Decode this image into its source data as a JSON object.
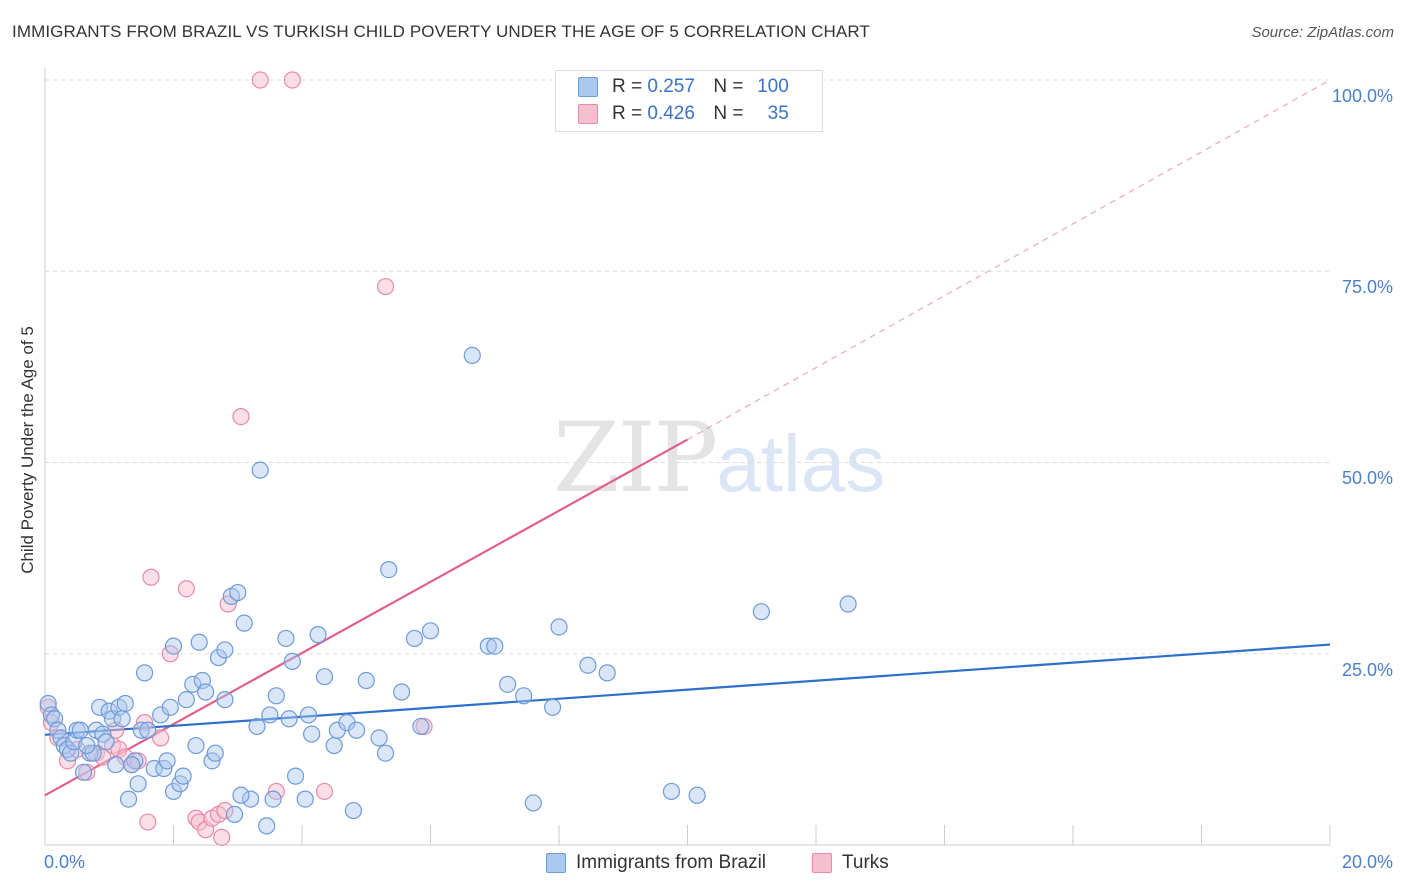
{
  "title": "IMMIGRANTS FROM BRAZIL VS TURKISH CHILD POVERTY UNDER THE AGE OF 5 CORRELATION CHART",
  "source": "Source: ZipAtlas.com",
  "watermark": {
    "zip": "ZIP",
    "atlas": "atlas"
  },
  "legend_top": {
    "rows": [
      {
        "r_label": "R =",
        "r_value": "0.257",
        "n_label": "N =",
        "n_value": "100"
      },
      {
        "r_label": "R =",
        "r_value": "0.426",
        "n_label": "N =",
        "n_value": "35"
      }
    ]
  },
  "legend_bottom": [
    {
      "label": "Immigrants from Brazil"
    },
    {
      "label": "Turks"
    }
  ],
  "colors": {
    "brazil_fill": "#aac8f0",
    "brazil_stroke": "#6f9ad8",
    "brazil_line": "#2d6fcb",
    "turks_fill": "#f6bfd0",
    "turks_stroke": "#e88aa8",
    "turks_line": "#e0608c",
    "tick_text": "#4a7fd0",
    "grid": "#dddddd"
  },
  "chart_data": {
    "type": "scatter",
    "title": "IMMIGRANTS FROM BRAZIL VS TURKISH CHILD POVERTY UNDER THE AGE OF 5 CORRELATION CHART",
    "xlabel": "",
    "ylabel": "Child Poverty Under the Age of 5",
    "xlim": [
      0,
      20
    ],
    "ylim": [
      0,
      100
    ],
    "x_tick_labels": [
      "0.0%",
      "20.0%"
    ],
    "y_ticks": [
      25,
      50,
      75,
      100
    ],
    "y_tick_labels": [
      "25.0%",
      "50.0%",
      "75.0%",
      "100.0%"
    ],
    "series": [
      {
        "name": "Immigrants from Brazil",
        "R": 0.257,
        "N": 100,
        "trend": {
          "x0": 0,
          "y0": 14.4,
          "x1": 20,
          "y1": 26.2
        },
        "points": [
          [
            0.05,
            18.5
          ],
          [
            0.1,
            17
          ],
          [
            0.15,
            16.5
          ],
          [
            0.2,
            15
          ],
          [
            0.25,
            14
          ],
          [
            0.3,
            13
          ],
          [
            0.35,
            12.5
          ],
          [
            0.4,
            12
          ],
          [
            0.45,
            13.5
          ],
          [
            0.5,
            15
          ],
          [
            0.55,
            15
          ],
          [
            0.6,
            9.5
          ],
          [
            0.7,
            12
          ],
          [
            0.75,
            12
          ],
          [
            0.8,
            15
          ],
          [
            0.85,
            18
          ],
          [
            0.9,
            14.5
          ],
          [
            0.95,
            13.5
          ],
          [
            1.0,
            17.5
          ],
          [
            1.05,
            16.5
          ],
          [
            1.1,
            10.5
          ],
          [
            1.15,
            18
          ],
          [
            1.2,
            16.5
          ],
          [
            1.25,
            18.5
          ],
          [
            1.3,
            6
          ],
          [
            1.4,
            11
          ],
          [
            1.45,
            8
          ],
          [
            1.5,
            15
          ],
          [
            1.55,
            22.5
          ],
          [
            1.6,
            15
          ],
          [
            1.7,
            10
          ],
          [
            1.8,
            17
          ],
          [
            1.85,
            10
          ],
          [
            1.9,
            11
          ],
          [
            1.95,
            18
          ],
          [
            2.0,
            26
          ],
          [
            2.0,
            7
          ],
          [
            2.1,
            8
          ],
          [
            2.15,
            9
          ],
          [
            2.2,
            19
          ],
          [
            2.3,
            21
          ],
          [
            2.4,
            26.5
          ],
          [
            2.45,
            21.5
          ],
          [
            2.5,
            20
          ],
          [
            2.6,
            11
          ],
          [
            2.65,
            12
          ],
          [
            2.7,
            24.5
          ],
          [
            2.8,
            25.5
          ],
          [
            2.8,
            19
          ],
          [
            2.9,
            32.5
          ],
          [
            2.95,
            4
          ],
          [
            3.0,
            33
          ],
          [
            3.1,
            29
          ],
          [
            3.2,
            6
          ],
          [
            3.3,
            15.5
          ],
          [
            3.35,
            49
          ],
          [
            3.45,
            2.5
          ],
          [
            3.5,
            17
          ],
          [
            3.55,
            6
          ],
          [
            3.6,
            19.5
          ],
          [
            3.75,
            27
          ],
          [
            3.8,
            16.5
          ],
          [
            3.85,
            24
          ],
          [
            3.9,
            9
          ],
          [
            4.1,
            17
          ],
          [
            4.15,
            14.5
          ],
          [
            4.25,
            27.5
          ],
          [
            4.35,
            22
          ],
          [
            4.5,
            13
          ],
          [
            4.55,
            15
          ],
          [
            4.7,
            16
          ],
          [
            4.8,
            4.5
          ],
          [
            4.85,
            15
          ],
          [
            5.0,
            21.5
          ],
          [
            5.2,
            14
          ],
          [
            5.3,
            12
          ],
          [
            5.35,
            36
          ],
          [
            5.55,
            20
          ],
          [
            5.75,
            27
          ],
          [
            5.85,
            15.5
          ],
          [
            6.0,
            28
          ],
          [
            6.65,
            64
          ],
          [
            6.9,
            26
          ],
          [
            7.0,
            26
          ],
          [
            7.2,
            21
          ],
          [
            7.45,
            19.5
          ],
          [
            7.6,
            5.5
          ],
          [
            7.9,
            18
          ],
          [
            8.0,
            28.5
          ],
          [
            8.45,
            23.5
          ],
          [
            8.75,
            22.5
          ],
          [
            9.75,
            7
          ],
          [
            10.15,
            6.5
          ],
          [
            11.15,
            30.5
          ],
          [
            12.5,
            31.5
          ],
          [
            4.05,
            6
          ],
          [
            3.05,
            6.5
          ],
          [
            1.35,
            10.5
          ],
          [
            2.35,
            13
          ],
          [
            0.65,
            13
          ]
        ]
      },
      {
        "name": "Turks",
        "R": 0.426,
        "N": 35,
        "trend": {
          "x0": 0,
          "y0": 6.5,
          "x1": 10,
          "y1": 53.0
        },
        "trend_extended": {
          "x0": 10,
          "y0": 53.0,
          "x1": 20,
          "y1": 100
        },
        "points": [
          [
            0.05,
            18
          ],
          [
            0.1,
            16
          ],
          [
            0.2,
            14
          ],
          [
            0.35,
            11
          ],
          [
            0.5,
            12.5
          ],
          [
            0.65,
            9.5
          ],
          [
            0.8,
            12
          ],
          [
            0.9,
            11.5
          ],
          [
            1.05,
            13
          ],
          [
            1.15,
            12.5
          ],
          [
            1.25,
            11.5
          ],
          [
            1.35,
            10.5
          ],
          [
            1.45,
            11
          ],
          [
            1.55,
            16
          ],
          [
            1.6,
            3
          ],
          [
            1.65,
            35
          ],
          [
            1.8,
            14
          ],
          [
            1.95,
            25
          ],
          [
            2.2,
            33.5
          ],
          [
            2.35,
            3.5
          ],
          [
            2.4,
            3
          ],
          [
            2.5,
            2
          ],
          [
            2.6,
            3.5
          ],
          [
            2.7,
            4
          ],
          [
            2.75,
            1
          ],
          [
            2.8,
            4.5
          ],
          [
            2.85,
            31.5
          ],
          [
            3.05,
            56
          ],
          [
            3.35,
            100
          ],
          [
            3.85,
            100
          ],
          [
            4.35,
            7
          ],
          [
            5.3,
            73
          ],
          [
            5.9,
            15.5
          ],
          [
            3.6,
            7
          ],
          [
            1.1,
            15
          ]
        ]
      }
    ]
  }
}
